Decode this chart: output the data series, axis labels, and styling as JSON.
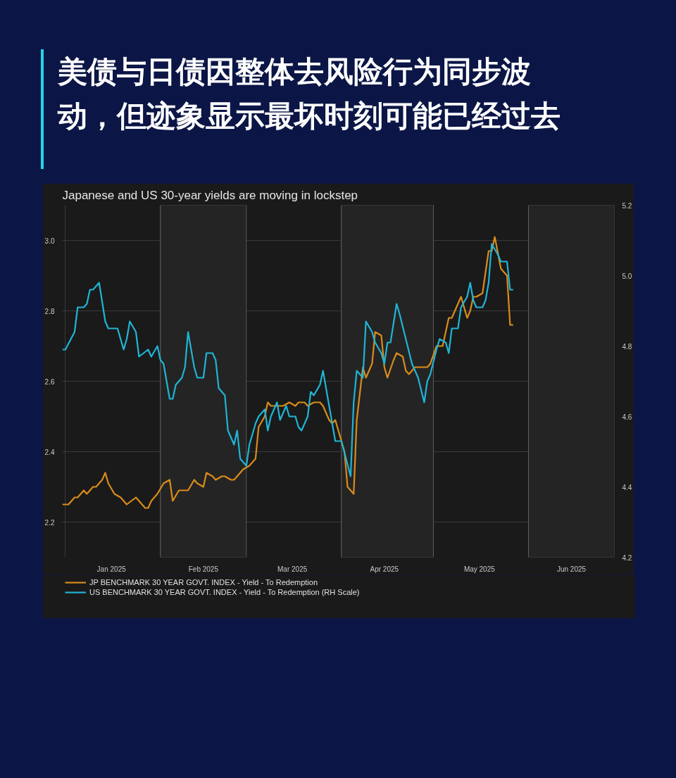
{
  "chart_data": {
    "type": "line",
    "title": "美债与日债因整体去风险行为同步波动，但迹象显示最坏时刻可能已经过去",
    "subtitle": "Japanese and US 30-year yields are moving in lockstep",
    "xlim": [
      "2024-12-31",
      "2025-06-29"
    ],
    "xticks": [
      {
        "value": "2025-01-01",
        "label": null
      },
      {
        "value": "2025-01-16",
        "label": "Jan 2025"
      },
      {
        "value": "2025-02-01",
        "label": null
      },
      {
        "value": "2025-02-15",
        "label": "Feb 2025"
      },
      {
        "value": "2025-03-01",
        "label": null
      },
      {
        "value": "2025-03-16",
        "label": "Mar 2025"
      },
      {
        "value": "2025-04-01",
        "label": null
      },
      {
        "value": "2025-04-15",
        "label": "Apr 2025"
      },
      {
        "value": "2025-05-01",
        "label": null
      },
      {
        "value": "2025-05-16",
        "label": "May 2025"
      },
      {
        "value": "2025-06-01",
        "label": null
      },
      {
        "value": "2025-06-15",
        "label": "Jun 2025"
      }
    ],
    "ylim": [
      2.1,
      3.1
    ],
    "yticks": [
      2.2,
      2.4,
      2.6,
      2.8,
      {
        "value": 3.0,
        "label": "3.0"
      }
    ],
    "y2lim": [
      4.2,
      5.2
    ],
    "y2ticks": [
      4.2,
      4.4,
      4.6,
      4.8,
      {
        "value": 5.0,
        "label": "5.0"
      },
      5.2
    ],
    "grid": true,
    "legend": "bottom",
    "line_style": "solid",
    "bands": [
      {
        "axis": "x",
        "from": "2025-02-01",
        "to": "2025-03-01",
        "color": "#242424"
      },
      {
        "axis": "x",
        "from": "2025-04-01",
        "to": "2025-05-01",
        "color": "#242424"
      },
      {
        "axis": "x",
        "from": "2025-06-01",
        "to": "2025-06-29",
        "color": "#242424"
      }
    ],
    "series": [
      {
        "name": "JP BENCHMARK 30 YEAR GOVT. INDEX - Yield - To Redemption",
        "color": "#d98c1a",
        "axis": "y",
        "x": [
          "2024-12-31",
          "2025-01-02",
          "2025-01-04",
          "2025-01-05",
          "2025-01-07",
          "2025-01-08",
          "2025-01-10",
          "2025-01-11",
          "2025-01-13",
          "2025-01-14",
          "2025-01-15",
          "2025-01-17",
          "2025-01-19",
          "2025-01-21",
          "2025-01-24",
          "2025-01-25",
          "2025-01-27",
          "2025-01-28",
          "2025-01-29",
          "2025-01-31",
          "2025-02-02",
          "2025-02-04",
          "2025-02-05",
          "2025-02-07",
          "2025-02-08",
          "2025-02-10",
          "2025-02-12",
          "2025-02-13",
          "2025-02-15",
          "2025-02-16",
          "2025-02-18",
          "2025-02-19",
          "2025-02-21",
          "2025-02-22",
          "2025-02-24",
          "2025-02-25",
          "2025-02-26",
          "2025-02-28",
          "2025-03-02",
          "2025-03-04",
          "2025-03-05",
          "2025-03-07",
          "2025-03-08",
          "2025-03-09",
          "2025-03-11",
          "2025-03-13",
          "2025-03-15",
          "2025-03-17",
          "2025-03-18",
          "2025-03-20",
          "2025-03-21",
          "2025-03-23",
          "2025-03-25",
          "2025-03-26",
          "2025-03-28",
          "2025-03-29",
          "2025-03-30",
          "2025-03-31",
          "2025-04-02",
          "2025-04-03",
          "2025-04-05",
          "2025-04-06",
          "2025-04-08",
          "2025-04-09",
          "2025-04-11",
          "2025-04-12",
          "2025-04-14",
          "2025-04-15",
          "2025-04-16",
          "2025-04-18",
          "2025-04-19",
          "2025-04-21",
          "2025-04-22",
          "2025-04-23",
          "2025-04-25",
          "2025-04-26",
          "2025-04-29",
          "2025-04-30",
          "2025-05-02",
          "2025-05-04",
          "2025-05-06",
          "2025-05-07",
          "2025-05-10",
          "2025-05-12",
          "2025-05-13",
          "2025-05-14",
          "2025-05-15",
          "2025-05-17",
          "2025-05-19",
          "2025-05-20",
          "2025-05-21",
          "2025-05-23",
          "2025-05-25",
          "2025-05-26",
          "2025-05-27"
        ],
        "values": [
          2.25,
          2.25,
          2.27,
          2.27,
          2.29,
          2.28,
          2.3,
          2.3,
          2.32,
          2.34,
          2.31,
          2.28,
          2.27,
          2.25,
          2.27,
          2.26,
          2.24,
          2.24,
          2.26,
          2.28,
          2.31,
          2.32,
          2.26,
          2.29,
          2.29,
          2.29,
          2.32,
          2.31,
          2.3,
          2.34,
          2.33,
          2.32,
          2.33,
          2.33,
          2.32,
          2.32,
          2.33,
          2.35,
          2.36,
          2.38,
          2.47,
          2.5,
          2.54,
          2.53,
          2.53,
          2.53,
          2.54,
          2.53,
          2.54,
          2.54,
          2.53,
          2.54,
          2.54,
          2.53,
          2.49,
          2.48,
          2.49,
          2.46,
          2.4,
          2.3,
          2.28,
          2.49,
          2.64,
          2.61,
          2.65,
          2.74,
          2.73,
          2.64,
          2.61,
          2.66,
          2.68,
          2.67,
          2.63,
          2.62,
          2.64,
          2.64,
          2.64,
          2.65,
          2.7,
          2.7,
          2.78,
          2.78,
          2.84,
          2.78,
          2.8,
          2.84,
          2.84,
          2.85,
          2.97,
          2.97,
          3.01,
          2.92,
          2.9,
          2.76,
          2.76
        ]
      },
      {
        "name": "US BENCHMARK 30 YEAR GOVT. INDEX - Yield - To Redemption (RH Scale)",
        "color": "#1fb5d6",
        "axis": "y2",
        "x": [
          "2024-12-31",
          "2025-01-01",
          "2025-01-04",
          "2025-01-05",
          "2025-01-07",
          "2025-01-08",
          "2025-01-09",
          "2025-01-10",
          "2025-01-12",
          "2025-01-14",
          "2025-01-15",
          "2025-01-17",
          "2025-01-18",
          "2025-01-20",
          "2025-01-21",
          "2025-01-22",
          "2025-01-24",
          "2025-01-25",
          "2025-01-28",
          "2025-01-29",
          "2025-01-31",
          "2025-02-01",
          "2025-02-02",
          "2025-02-04",
          "2025-02-05",
          "2025-02-06",
          "2025-02-08",
          "2025-02-09",
          "2025-02-10",
          "2025-02-12",
          "2025-02-13",
          "2025-02-15",
          "2025-02-16",
          "2025-02-18",
          "2025-02-19",
          "2025-02-20",
          "2025-02-22",
          "2025-02-23",
          "2025-02-25",
          "2025-02-26",
          "2025-02-27",
          "2025-03-01",
          "2025-03-02",
          "2025-03-04",
          "2025-03-05",
          "2025-03-07",
          "2025-03-08",
          "2025-03-09",
          "2025-03-11",
          "2025-03-12",
          "2025-03-14",
          "2025-03-15",
          "2025-03-17",
          "2025-03-18",
          "2025-03-19",
          "2025-03-21",
          "2025-03-22",
          "2025-03-23",
          "2025-03-25",
          "2025-03-26",
          "2025-03-28",
          "2025-03-30",
          "2025-04-01",
          "2025-04-04",
          "2025-04-05",
          "2025-04-06",
          "2025-04-08",
          "2025-04-09",
          "2025-04-11",
          "2025-04-12",
          "2025-04-14",
          "2025-04-15",
          "2025-04-16",
          "2025-04-17",
          "2025-04-19",
          "2025-04-20",
          "2025-04-22",
          "2025-04-24",
          "2025-04-26",
          "2025-04-28",
          "2025-04-29",
          "2025-04-30",
          "2025-05-02",
          "2025-05-03",
          "2025-05-05",
          "2025-05-06",
          "2025-05-07",
          "2025-05-09",
          "2025-05-10",
          "2025-05-12",
          "2025-05-13",
          "2025-05-14",
          "2025-05-15",
          "2025-05-17",
          "2025-05-18",
          "2025-05-19",
          "2025-05-20",
          "2025-05-22",
          "2025-05-23",
          "2025-05-25",
          "2025-05-26",
          "2025-05-27"
        ],
        "values": [
          4.79,
          4.79,
          4.84,
          4.91,
          4.91,
          4.92,
          4.96,
          4.96,
          4.98,
          4.87,
          4.85,
          4.85,
          4.85,
          4.79,
          4.82,
          4.87,
          4.84,
          4.77,
          4.79,
          4.77,
          4.8,
          4.76,
          4.75,
          4.65,
          4.65,
          4.69,
          4.71,
          4.74,
          4.84,
          4.74,
          4.71,
          4.71,
          4.78,
          4.78,
          4.76,
          4.68,
          4.66,
          4.56,
          4.52,
          4.56,
          4.48,
          4.46,
          4.52,
          4.58,
          4.6,
          4.62,
          4.56,
          4.6,
          4.64,
          4.59,
          4.63,
          4.6,
          4.6,
          4.57,
          4.56,
          4.6,
          4.67,
          4.66,
          4.69,
          4.73,
          4.63,
          4.53,
          4.53,
          4.43,
          4.64,
          4.73,
          4.71,
          4.87,
          4.84,
          4.81,
          4.78,
          4.75,
          4.81,
          4.81,
          4.92,
          4.89,
          4.82,
          4.75,
          4.71,
          4.64,
          4.7,
          4.72,
          4.79,
          4.82,
          4.81,
          4.78,
          4.85,
          4.85,
          4.91,
          4.94,
          4.98,
          4.93,
          4.91,
          4.91,
          4.93,
          4.98,
          5.09,
          5.06,
          5.04,
          5.04,
          4.96,
          4.96
        ]
      }
    ]
  }
}
